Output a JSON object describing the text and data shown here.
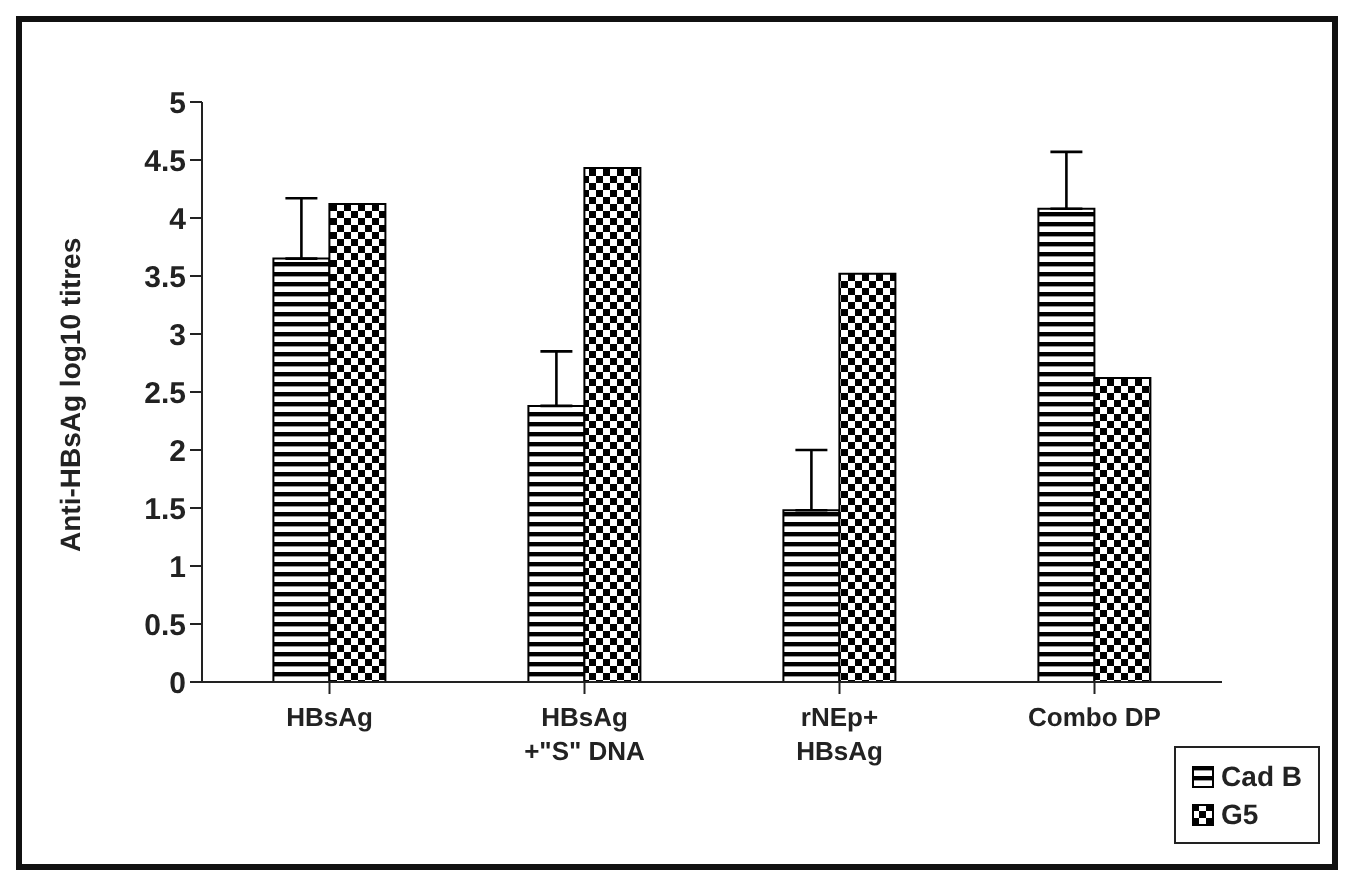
{
  "chart_data": {
    "type": "bar",
    "ylabel": "Anti-HBsAg log10 titres",
    "categories": [
      "HBsAg",
      "HBsAg +\"S\" DNA",
      "rNEp+ HBsAg",
      "Combo DP"
    ],
    "series": [
      {
        "name": "Cad B",
        "color": "#000000",
        "values": [
          3.65,
          2.38,
          1.48,
          4.08
        ],
        "errors": [
          [
            3.65,
            4.17
          ],
          [
            2.38,
            2.85
          ],
          [
            1.48,
            2.0
          ],
          [
            4.08,
            4.57
          ]
        ]
      },
      {
        "name": "G5",
        "color": "#000000",
        "values": [
          4.12,
          4.43,
          3.52,
          2.62
        ]
      }
    ],
    "ylim": [
      0,
      5
    ],
    "yticks": [
      0,
      0.5,
      1,
      1.5,
      2,
      2.5,
      3,
      3.5,
      4,
      4.5,
      5
    ],
    "grid": false,
    "legend": "bottom right"
  }
}
